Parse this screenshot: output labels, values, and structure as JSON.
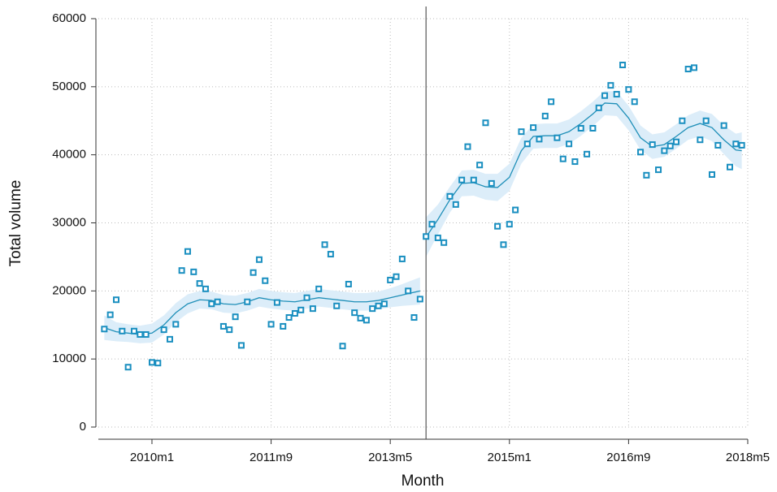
{
  "chart_data": {
    "type": "scatter",
    "x_label": "Month",
    "y_label": "Total volume",
    "x": [
      592,
      593,
      594,
      595,
      596,
      597,
      598,
      599,
      600,
      601,
      602,
      603,
      604,
      605,
      606,
      607,
      608,
      609,
      610,
      611,
      612,
      613,
      614,
      615,
      616,
      617,
      618,
      619,
      620,
      621,
      622,
      623,
      624,
      625,
      626,
      627,
      628,
      629,
      630,
      631,
      632,
      633,
      634,
      635,
      636,
      637,
      638,
      639,
      640,
      641,
      642,
      643,
      644,
      645,
      646,
      647,
      648,
      649,
      650,
      651,
      652,
      653,
      654,
      655,
      656,
      657,
      658,
      659,
      660,
      661,
      662,
      663,
      664,
      665,
      666,
      667,
      668,
      669,
      670,
      671,
      672,
      673,
      674,
      675,
      676,
      677,
      678,
      679,
      680,
      681,
      682,
      683,
      684,
      685,
      686,
      687,
      688,
      689,
      690,
      691,
      692,
      693,
      694,
      695,
      696,
      697,
      698,
      699
    ],
    "values": [
      14400,
      16500,
      18700,
      14100,
      8800,
      14100,
      13600,
      13600,
      9500,
      9400,
      14300,
      12900,
      15100,
      23000,
      25800,
      22800,
      21100,
      20300,
      18100,
      18400,
      14800,
      14300,
      16200,
      12000,
      18400,
      22700,
      24600,
      21500,
      15100,
      18300,
      14800,
      16100,
      16700,
      17200,
      19000,
      17400,
      20300,
      26800,
      25400,
      17800,
      11900,
      21000,
      16800,
      16000,
      15700,
      17400,
      17800,
      18100,
      21600,
      22100,
      24700,
      20000,
      16100,
      18800,
      28000,
      29800,
      27800,
      27100,
      33900,
      32700,
      36300,
      41200,
      36300,
      38500,
      44700,
      35800,
      29500,
      26800,
      29800,
      31900,
      43400,
      41600,
      44000,
      42300,
      45700,
      47800,
      42500,
      39400,
      41600,
      39000,
      43900,
      40100,
      43900,
      46900,
      48700,
      50200,
      48900,
      53200,
      49600,
      47800,
      40400,
      37000,
      41500,
      37800,
      40600,
      41300,
      41900,
      45000,
      52600,
      52800,
      42200,
      45000,
      37100,
      41400,
      44300,
      38200,
      41600,
      41400
    ],
    "color": "#1a8fc0",
    "fits": [
      {
        "x": [
          592,
          594,
          596,
          598,
          600,
          602,
          604,
          606,
          608,
          610,
          612,
          614,
          616,
          618,
          620,
          622,
          624,
          626,
          628,
          630,
          632,
          634,
          636,
          638,
          640,
          642,
          645
        ],
        "values": [
          14600,
          14000,
          13800,
          13600,
          13800,
          15000,
          16800,
          18100,
          18700,
          18600,
          18100,
          18000,
          18400,
          19000,
          18700,
          18500,
          18400,
          18700,
          19000,
          18800,
          18600,
          18400,
          18400,
          18600,
          19000,
          19400,
          20000
        ],
        "lower": [
          12800,
          12600,
          12500,
          12300,
          12400,
          13600,
          15400,
          16700,
          17400,
          17300,
          16800,
          16700,
          17100,
          17700,
          17400,
          17200,
          17100,
          17400,
          17700,
          17500,
          17300,
          17100,
          17100,
          17300,
          17600,
          17800,
          18000
        ],
        "upper": [
          16400,
          15400,
          15100,
          14900,
          15200,
          16400,
          18200,
          19500,
          20000,
          19900,
          19400,
          19300,
          19700,
          20300,
          20000,
          19800,
          19700,
          20000,
          20300,
          20100,
          19900,
          19700,
          19700,
          19900,
          20400,
          21000,
          22000
        ]
      },
      {
        "x": [
          646,
          648,
          650,
          652,
          654,
          656,
          658,
          660,
          662,
          664,
          666,
          668,
          670,
          672,
          674,
          676,
          678,
          680,
          682,
          684,
          686,
          688,
          690,
          692,
          694,
          696,
          698,
          699
        ],
        "values": [
          27900,
          30500,
          33400,
          35800,
          35900,
          35300,
          35200,
          36700,
          40600,
          42700,
          42800,
          42800,
          43400,
          44600,
          46000,
          47600,
          47500,
          45400,
          42500,
          41200,
          41500,
          42700,
          44000,
          44600,
          44000,
          42200,
          40700,
          40600
        ],
        "lower": [
          25000,
          28300,
          31500,
          33900,
          34000,
          33400,
          33200,
          34700,
          38700,
          40900,
          41000,
          41000,
          41600,
          42800,
          44200,
          45800,
          45700,
          43600,
          40700,
          39400,
          39700,
          40900,
          42200,
          42700,
          42000,
          40100,
          38300,
          37900
        ],
        "upper": [
          30800,
          32700,
          35300,
          37700,
          37800,
          37200,
          37200,
          38700,
          42500,
          44500,
          44600,
          44600,
          45200,
          46400,
          47800,
          49400,
          49300,
          47200,
          44300,
          43000,
          43300,
          44500,
          45800,
          46500,
          46000,
          44300,
          43100,
          43300
        ]
      }
    ],
    "fit_color": "#1f8fb8",
    "band_color": "#dcedf9",
    "xline": 646,
    "xlim": [
      591,
      700
    ],
    "xticks": [
      {
        "value": 600,
        "label": "2010m1"
      },
      {
        "value": 620,
        "label": "2011m9"
      },
      {
        "value": 640,
        "label": "2013m5"
      },
      {
        "value": 660,
        "label": "2015m1"
      },
      {
        "value": 680,
        "label": "2016m9"
      },
      {
        "value": 700,
        "label": "2018m5"
      }
    ],
    "ylim": [
      0,
      60000
    ],
    "yticks": [
      0,
      10000,
      20000,
      30000,
      40000,
      50000,
      60000
    ],
    "grid": true
  }
}
